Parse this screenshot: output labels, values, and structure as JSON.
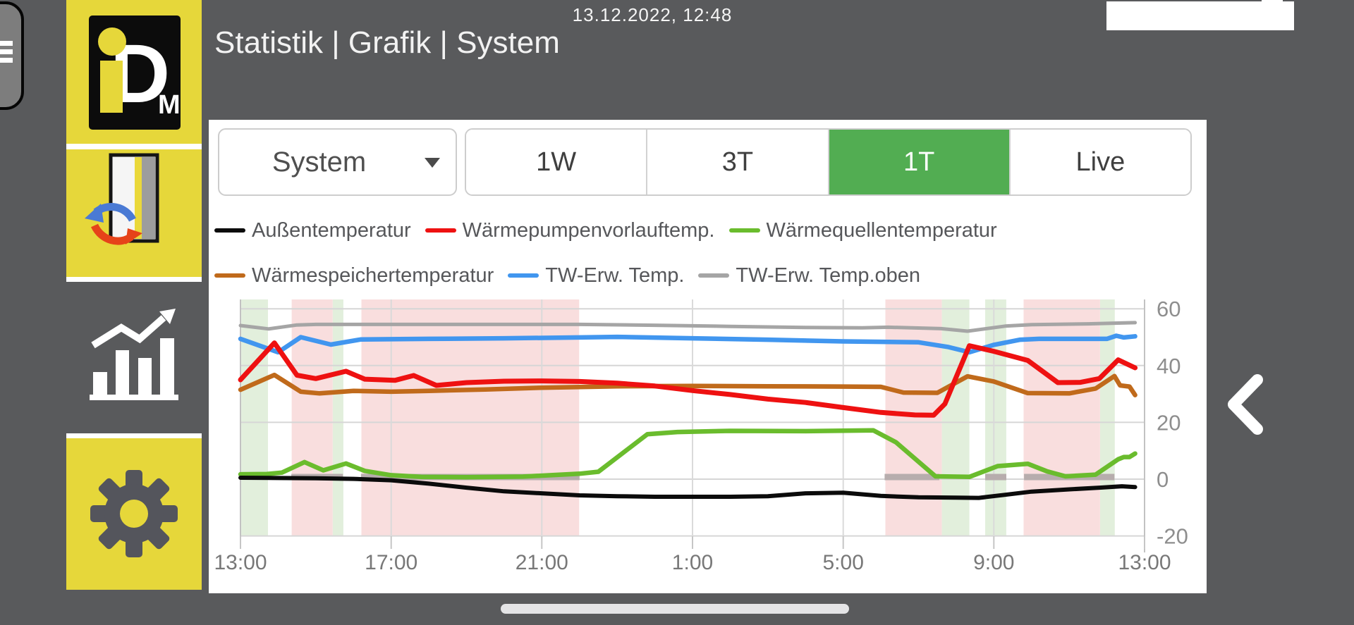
{
  "statusbar": {
    "timestamp": "13.12.2022, 12:48"
  },
  "header": {
    "title": "Statistik | Grafik | System"
  },
  "sidebar": {
    "items": [
      {
        "id": "logo",
        "icon": "idm-logo",
        "logo_i": "i",
        "logo_d": "D",
        "logo_m": "M"
      },
      {
        "id": "system",
        "icon": "heat-exchange-icon"
      },
      {
        "id": "statistics",
        "icon": "statistics-chart-icon"
      },
      {
        "id": "settings",
        "icon": "settings-gear-icon"
      }
    ]
  },
  "controls": {
    "dropdown": {
      "value": "System"
    },
    "range_buttons": [
      {
        "label": "1W",
        "active": false
      },
      {
        "label": "3T",
        "active": false
      },
      {
        "label": "1T",
        "active": true
      },
      {
        "label": "Live",
        "active": false
      }
    ],
    "active_color": "#52ad52"
  },
  "legend": {
    "rows": [
      [
        {
          "label": "Außentemperatur",
          "color": "#0b0b0b"
        },
        {
          "label": "Wärmepumpenvorlauftemp.",
          "color": "#ee1111"
        },
        {
          "label": "Wärmequellentemperatur",
          "color": "#6abc2d"
        }
      ],
      [
        {
          "label": "Wärmespeichertemperatur",
          "color": "#c06a1b"
        },
        {
          "label": "TW-Erw. Temp.",
          "color": "#4196ef"
        },
        {
          "label": "TW-Erw. Temp.oben",
          "color": "#a5a5a5"
        }
      ]
    ]
  },
  "chart_data": {
    "type": "line",
    "title": "",
    "xlabel": "",
    "ylabel": "",
    "x_axis": {
      "ticks": [
        "13:00",
        "17:00",
        "21:00",
        "1:00",
        "5:00",
        "9:00",
        "13:00"
      ],
      "hours_span": 24,
      "tick_interval_hours": 4
    },
    "y_axis": {
      "ticks": [
        {
          "value": 60,
          "label": "60"
        },
        {
          "value": 40,
          "label": "40"
        },
        {
          "value": 20,
          "label": "20"
        },
        {
          "value": 0,
          "label": "0"
        },
        {
          "value": -20,
          "label": "-20"
        }
      ],
      "min": -20,
      "max": 60
    },
    "grid": true,
    "legend_position": "top",
    "band_colors": {
      "pink": "#f9dede",
      "green": "#e2efdc"
    },
    "bands": [
      {
        "from": 0.02,
        "to": 0.73,
        "type": "green"
      },
      {
        "from": 1.36,
        "to": 2.45,
        "type": "pink"
      },
      {
        "from": 2.45,
        "to": 2.73,
        "type": "green"
      },
      {
        "from": 3.21,
        "to": 8.99,
        "type": "pink"
      },
      {
        "from": 17.12,
        "to": 18.62,
        "type": "pink"
      },
      {
        "from": 18.62,
        "to": 19.35,
        "type": "green"
      },
      {
        "from": 19.77,
        "to": 20.33,
        "type": "green"
      },
      {
        "from": 20.79,
        "to": 22.82,
        "type": "pink"
      },
      {
        "from": 22.82,
        "to": 23.21,
        "type": "green"
      }
    ],
    "status_segment_color": "#b7adad",
    "status_segments": [
      [
        1.35,
        2.72
      ],
      [
        3.2,
        9.0
      ],
      [
        17.1,
        18.55
      ],
      [
        19.77,
        20.33
      ],
      [
        20.8,
        23.2
      ]
    ],
    "series": [
      {
        "name": "TW-Erw. Temp.oben",
        "slug": "tw-erw-temp-oben",
        "color": "#a5a5a5",
        "width": 5,
        "points": [
          [
            0,
            54.1
          ],
          [
            0.75,
            52.9
          ],
          [
            1.5,
            54.3
          ],
          [
            2,
            54.5
          ],
          [
            6,
            54.5
          ],
          [
            9,
            54.5
          ],
          [
            11,
            54.2
          ],
          [
            13,
            53.8
          ],
          [
            15,
            53.4
          ],
          [
            16.5,
            53.3
          ],
          [
            17.2,
            53.5
          ],
          [
            18.6,
            53.0
          ],
          [
            19.3,
            52.1
          ],
          [
            20.3,
            53.9
          ],
          [
            21,
            54.4
          ],
          [
            22.5,
            54.7
          ],
          [
            23.75,
            55.1
          ]
        ]
      },
      {
        "name": "TW-Erw. Temp.",
        "slug": "tw-erw-temp",
        "color": "#4196ef",
        "width": 6.5,
        "points": [
          [
            0,
            49.4
          ],
          [
            1,
            44.7
          ],
          [
            1.6,
            50.0
          ],
          [
            2.4,
            47.4
          ],
          [
            3.2,
            49.2
          ],
          [
            5,
            49.4
          ],
          [
            7,
            49.6
          ],
          [
            9,
            49.9
          ],
          [
            10,
            50.1
          ],
          [
            12,
            49.6
          ],
          [
            14,
            49.1
          ],
          [
            16,
            48.5
          ],
          [
            18,
            48.2
          ],
          [
            18.8,
            46.5
          ],
          [
            19.35,
            44.7
          ],
          [
            20,
            47.3
          ],
          [
            20.7,
            49.1
          ],
          [
            21.2,
            49.4
          ],
          [
            23,
            49.4
          ],
          [
            23.25,
            50.5
          ],
          [
            23.45,
            49.9
          ],
          [
            23.75,
            50.3
          ]
        ]
      },
      {
        "name": "Wärmespeichertemperatur",
        "slug": "waermespeichertemperatur",
        "color": "#c06a1b",
        "width": 6.5,
        "points": [
          [
            0,
            31.5
          ],
          [
            0.9,
            36.7
          ],
          [
            1.6,
            30.8
          ],
          [
            2.1,
            30.2
          ],
          [
            3,
            31.1
          ],
          [
            4,
            30.8
          ],
          [
            5,
            31.1
          ],
          [
            6.5,
            31.6
          ],
          [
            8,
            32.2
          ],
          [
            10,
            32.7
          ],
          [
            12,
            32.8
          ],
          [
            14,
            32.7
          ],
          [
            16,
            32.6
          ],
          [
            17,
            32.5
          ],
          [
            17.6,
            30.5
          ],
          [
            18.5,
            30.4
          ],
          [
            19.3,
            36.2
          ],
          [
            20,
            34.4
          ],
          [
            20.9,
            30.3
          ],
          [
            22,
            30.2
          ],
          [
            22.7,
            31.9
          ],
          [
            23.2,
            36.3
          ],
          [
            23.35,
            33.0
          ],
          [
            23.6,
            32.6
          ],
          [
            23.75,
            29.6
          ]
        ]
      },
      {
        "name": "Wärmepumpenvorlauftemp.",
        "slug": "waermepumpenvorlauftemp",
        "color": "#ee1111",
        "width": 7,
        "points": [
          [
            0,
            35
          ],
          [
            0.9,
            48
          ],
          [
            1.5,
            36.6
          ],
          [
            2,
            35.4
          ],
          [
            2.8,
            38
          ],
          [
            3.3,
            35.2
          ],
          [
            4.1,
            34.8
          ],
          [
            4.6,
            36.5
          ],
          [
            5.2,
            33
          ],
          [
            6,
            34
          ],
          [
            7,
            34.5
          ],
          [
            8,
            34.6
          ],
          [
            9,
            34.4
          ],
          [
            10,
            33.8
          ],
          [
            11,
            32.8
          ],
          [
            12,
            31.2
          ],
          [
            13,
            29.8
          ],
          [
            14,
            28.2
          ],
          [
            15,
            27
          ],
          [
            16,
            25.2
          ],
          [
            17,
            23.5
          ],
          [
            17.9,
            22.6
          ],
          [
            18.4,
            22.5
          ],
          [
            18.7,
            26.5
          ],
          [
            19.35,
            47
          ],
          [
            20,
            45
          ],
          [
            20.9,
            41.8
          ],
          [
            21.7,
            34
          ],
          [
            22.3,
            34.1
          ],
          [
            22.8,
            35.4
          ],
          [
            23.3,
            42
          ],
          [
            23.75,
            39.2
          ]
        ]
      },
      {
        "name": "Wärmequellentemperatur",
        "slug": "waermequellentemperatur",
        "color": "#6abc2d",
        "width": 6.5,
        "points": [
          [
            0,
            1.7
          ],
          [
            0.7,
            1.8
          ],
          [
            1.1,
            2.3
          ],
          [
            1.7,
            6.0
          ],
          [
            2.2,
            3.1
          ],
          [
            2.8,
            5.5
          ],
          [
            3.3,
            2.9
          ],
          [
            4,
            1.4
          ],
          [
            4.8,
            0.8
          ],
          [
            6,
            0.7
          ],
          [
            7.5,
            0.9
          ],
          [
            9,
            1.9
          ],
          [
            9.5,
            2.6
          ],
          [
            10.8,
            15.8
          ],
          [
            11.6,
            16.6
          ],
          [
            13,
            17
          ],
          [
            15,
            16.9
          ],
          [
            16.8,
            17.2
          ],
          [
            17.4,
            13
          ],
          [
            18.45,
            1.0
          ],
          [
            19.35,
            0.8
          ],
          [
            20.1,
            4.6
          ],
          [
            20.9,
            5.4
          ],
          [
            21.4,
            2.8
          ],
          [
            21.9,
            1.0
          ],
          [
            22.7,
            1.6
          ],
          [
            23.3,
            7.0
          ],
          [
            23.45,
            7.8
          ],
          [
            23.6,
            7.8
          ],
          [
            23.75,
            9.0
          ]
        ]
      },
      {
        "name": "Außentemperatur",
        "slug": "aussentemperatur",
        "color": "#0b0b0b",
        "width": 6,
        "points": [
          [
            0,
            0.5
          ],
          [
            1,
            0.4
          ],
          [
            2,
            0.3
          ],
          [
            3,
            0.1
          ],
          [
            4,
            -0.4
          ],
          [
            5,
            -1.6
          ],
          [
            6,
            -3
          ],
          [
            7,
            -4.3
          ],
          [
            8,
            -5
          ],
          [
            9,
            -5.7
          ],
          [
            10,
            -6
          ],
          [
            11,
            -6.2
          ],
          [
            13,
            -6.2
          ],
          [
            14,
            -6
          ],
          [
            15,
            -5
          ],
          [
            16,
            -4.8
          ],
          [
            17,
            -5.9
          ],
          [
            18,
            -6.4
          ],
          [
            19,
            -6.5
          ],
          [
            19.6,
            -6.6
          ],
          [
            20.3,
            -5.5
          ],
          [
            21,
            -4.4
          ],
          [
            22,
            -3.6
          ],
          [
            22.8,
            -3
          ],
          [
            23.4,
            -2.5
          ],
          [
            23.75,
            -2.8
          ]
        ]
      }
    ]
  }
}
